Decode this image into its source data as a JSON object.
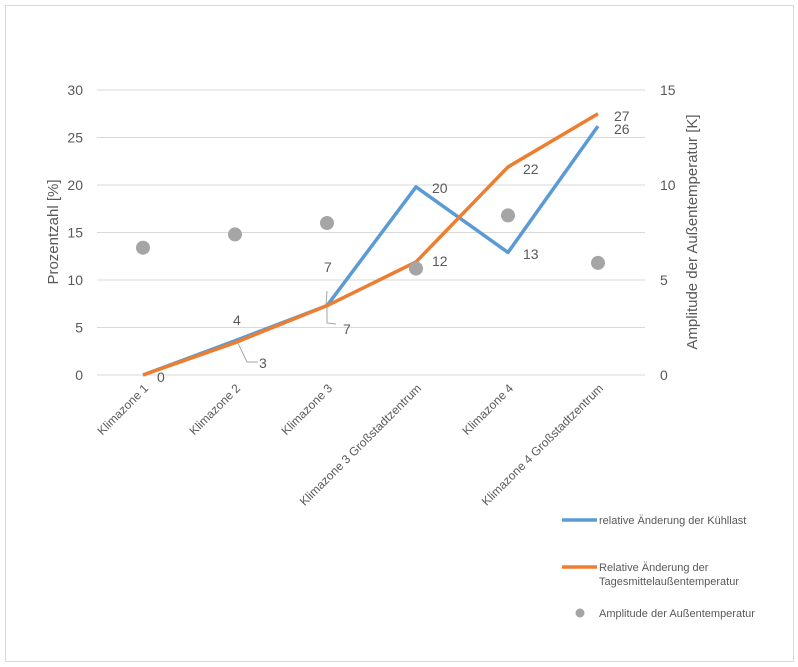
{
  "chart_data": {
    "type": "line",
    "categories": [
      "Klimazone 1",
      "Klimazone 2",
      "Klimazone 3",
      "Klimazone 3 Großstadtzentrum",
      "Klimazone 4",
      "Klimazone 4 Großstadtzentrum"
    ],
    "ylabel": "Prozentzahl [%]",
    "y2label": "Amplitude der Außentemperatur [K]",
    "ylim": [
      0,
      30
    ],
    "y2lim": [
      0,
      15
    ],
    "yticks": [
      "0",
      "5",
      "10",
      "15",
      "20",
      "25",
      "30"
    ],
    "y2ticks": [
      "0",
      "5",
      "10",
      "15"
    ],
    "grid": true,
    "legend_position": "bottom-right",
    "series": [
      {
        "name": "relative Änderung der Kühllast",
        "type": "line",
        "axis": "left",
        "color": "#5B9BD5",
        "values": [
          0,
          3.6,
          7.3,
          19.8,
          12.9,
          26.2
        ],
        "labels": [
          "",
          "4",
          "7",
          "20",
          "13",
          "26"
        ]
      },
      {
        "name": "Relative Änderung der Tagesmittelaußentemperatur",
        "legend_lines": [
          "Relative Änderung der",
          "Tagesmittelaußentemperatur"
        ],
        "type": "line",
        "axis": "left",
        "color": "#ED7D31",
        "values": [
          0,
          3.4,
          7.3,
          11.9,
          21.9,
          27.5
        ],
        "labels": [
          "0",
          "3",
          "7",
          "12",
          "22",
          "27"
        ]
      },
      {
        "name": "Amplitude der Außentemperatur",
        "type": "scatter",
        "axis": "right",
        "color": "#A5A5A5",
        "values": [
          6.7,
          7.4,
          8.0,
          5.6,
          8.4,
          5.9
        ]
      }
    ]
  }
}
